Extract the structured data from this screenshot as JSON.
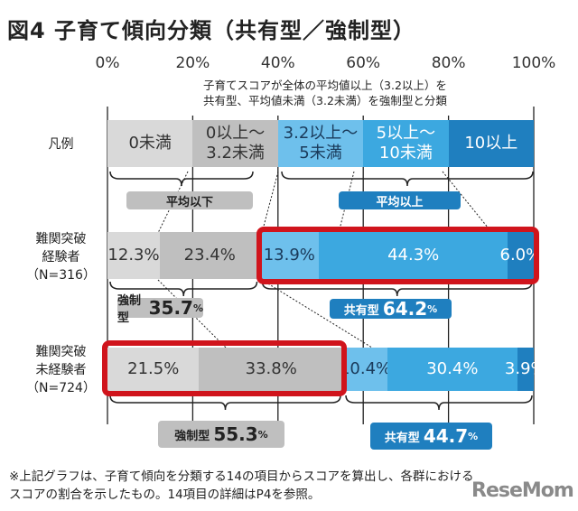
{
  "title": "図4 子育て傾向分類（共有型／強制型）",
  "note_line1": "子育てスコアが全体の平均値以上（3.2以上）を",
  "note_line2": "共有型、平均値未満（3.2未満）を強制型と分類",
  "chart_data": {
    "type": "bar",
    "orientation": "horizontal",
    "stacked": true,
    "xlim": [
      0,
      100
    ],
    "ticks": [
      "0%",
      "20%",
      "40%",
      "60%",
      "80%",
      "100%"
    ],
    "legend_label": "凡例",
    "legend": [
      "0未満",
      "0以上～\n3.2未満",
      "3.2以上～\n5未満",
      "5以上～\n10未満",
      "10以上"
    ],
    "colors": [
      "#d9d9d9",
      "#bfbfbf",
      "#6ec0ec",
      "#3ca8e0",
      "#1f7fbf"
    ],
    "group_labels": {
      "below": "平均以下",
      "above": "平均以上"
    },
    "rows": [
      {
        "name": "難関突破\n経験者\n（N=316）",
        "values": [
          12.3,
          23.4,
          13.9,
          44.3,
          6.0
        ],
        "labels": [
          "12.3%",
          "23.4%",
          "13.9%",
          "44.3%",
          "6.0%"
        ],
        "forced": {
          "label": "強制型",
          "value": "35.7",
          "unit": "%"
        },
        "shared": {
          "label": "共有型",
          "value": "64.2",
          "unit": "%"
        },
        "highlight": "shared"
      },
      {
        "name": "難関突破\n未経験者\n（N=724）",
        "values": [
          21.5,
          33.8,
          10.4,
          30.4,
          3.9
        ],
        "labels": [
          "21.5%",
          "33.8%",
          "10.4%",
          "30.4%",
          "3.9%"
        ],
        "forced": {
          "label": "強制型",
          "value": "55.3",
          "unit": "%"
        },
        "shared": {
          "label": "共有型",
          "value": "44.7",
          "unit": "%"
        },
        "highlight": "forced"
      }
    ],
    "highlight_color": "#d0141c"
  },
  "footnote_line1": "※上記グラフは、子育て傾向を分類する14の項目からスコアを算出し、各群における",
  "footnote_line2": "スコアの割合を示したもの。14項目の詳細はP4を参照。",
  "logo": "ReseMom"
}
